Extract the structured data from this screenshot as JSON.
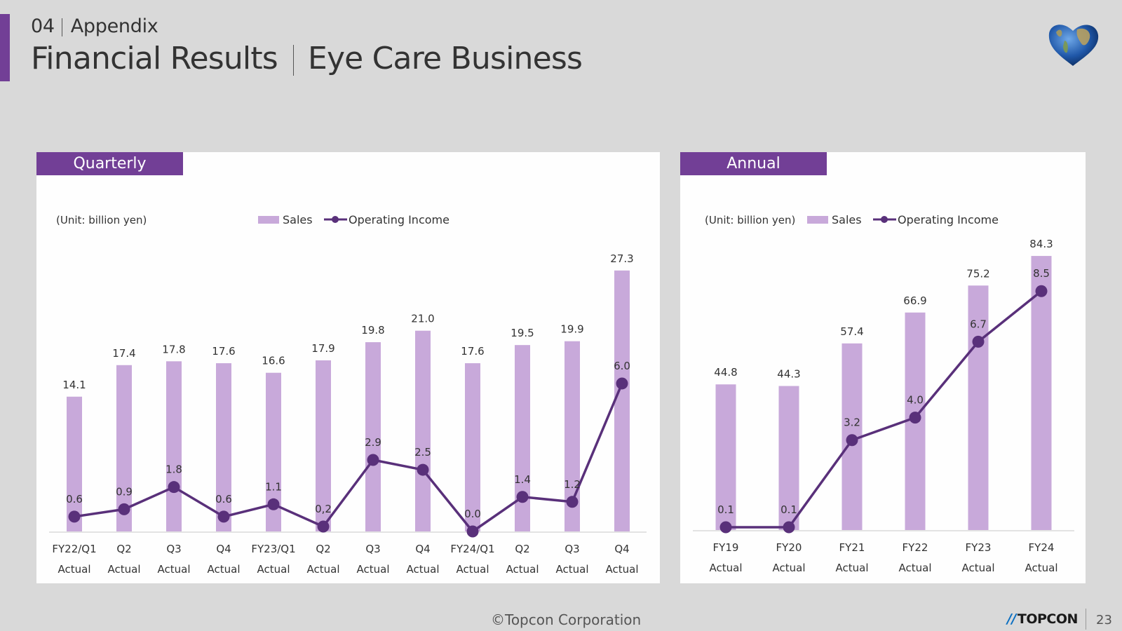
{
  "header": {
    "section_number": "04",
    "section_name": "Appendix",
    "title_left": "Financial Results",
    "title_right": "Eye Care Business"
  },
  "colors": {
    "accent": "#723f96",
    "sales_bar": "#c8a9da",
    "operating_line": "#59307a",
    "panel_bg": "#fefefe",
    "page_bg": "#d9d9d9"
  },
  "footer": {
    "copyright": "©Topcon Corporation",
    "brand": "TOPCON",
    "page_number": "23"
  },
  "chart_data": [
    {
      "type": "bar",
      "title": "Quarterly",
      "unit_note": "(Unit: billion yen)",
      "legend": {
        "sales": "Sales",
        "operating": "Operating Income",
        "placement": "top"
      },
      "categories": [
        "FY22/Q1",
        "Q2",
        "Q3",
        "Q4",
        "FY23/Q1",
        "Q2",
        "Q3",
        "Q4",
        "FY24/Q1",
        "Q2",
        "Q3",
        "Q4"
      ],
      "category_sublabel": "Actual",
      "series": [
        {
          "name": "Sales",
          "type": "bar",
          "values": [
            14.1,
            17.4,
            17.8,
            17.6,
            16.6,
            17.9,
            19.8,
            21.0,
            17.6,
            19.5,
            19.9,
            27.3
          ],
          "labels": [
            "14.1",
            "17.4",
            "17.8",
            "17.6",
            "16.6",
            "17.9",
            "19.8",
            "21.0",
            "17.6",
            "19.5",
            "19.9",
            "27.3"
          ]
        },
        {
          "name": "Operating Income",
          "type": "line",
          "values": [
            0.6,
            0.9,
            1.8,
            0.6,
            1.1,
            0.2,
            2.9,
            2.5,
            0.0,
            1.4,
            1.2,
            6.0
          ],
          "labels": [
            "0.6",
            "0.9",
            "1.8",
            "0.6",
            "1.1",
            "0,2",
            "2.9",
            "2.5",
            "0.0",
            "1.4",
            "1.2",
            "6.0"
          ]
        }
      ],
      "sales_axis_max": 30,
      "operating_axis_range": [
        0,
        10
      ],
      "grid": false
    },
    {
      "type": "bar",
      "title": "Annual",
      "unit_note": "(Unit: billion yen)",
      "legend": {
        "sales": "Sales",
        "operating": "Operating Income",
        "placement": "top"
      },
      "categories": [
        "FY19",
        "FY20",
        "FY21",
        "FY22",
        "FY23",
        "FY24"
      ],
      "category_sublabel": "Actual",
      "series": [
        {
          "name": "Sales",
          "type": "bar",
          "values": [
            44.8,
            44.3,
            57.4,
            66.9,
            75.2,
            84.3
          ],
          "labels": [
            "44.8",
            "44.3",
            "57.4",
            "66.9",
            "75.2",
            "84.3"
          ]
        },
        {
          "name": "Operating Income",
          "type": "line",
          "values": [
            0.1,
            0.1,
            3.2,
            4.0,
            6.7,
            8.5
          ],
          "labels": [
            "0.1",
            "0.1",
            "3.2",
            "4.0",
            "6.7",
            "8.5"
          ]
        }
      ],
      "sales_axis_max": 91,
      "operating_axis_range": [
        0,
        20
      ],
      "grid": false
    }
  ]
}
